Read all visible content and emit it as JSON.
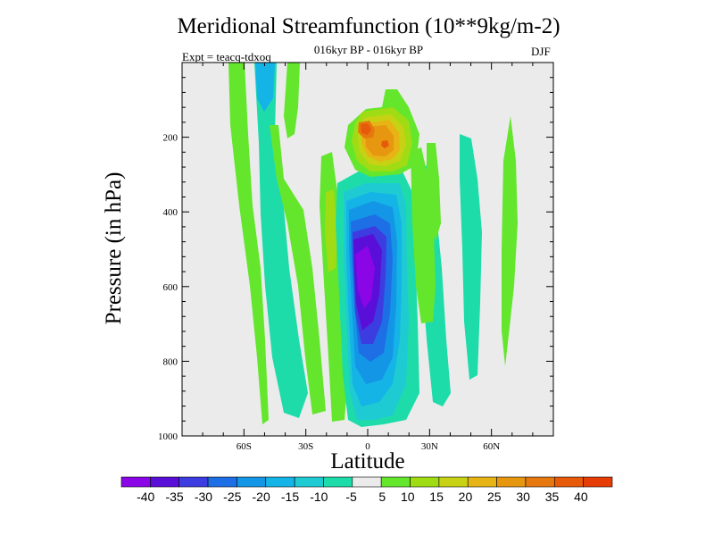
{
  "chart_data": {
    "type": "contour",
    "title": "Meridional Streamfunction (10**9kg/m-2)",
    "subtitle": "016kyr BP - 016kyr BP",
    "experiment_label": "Expt = teacq-tdxoq",
    "season": "DJF",
    "xlabel": "Latitude",
    "ylabel": "Pressure (in hPa)",
    "xlim": [
      -90,
      90
    ],
    "ylim": [
      1000,
      0
    ],
    "x_ticks": [
      {
        "value": -60,
        "label": "60S"
      },
      {
        "value": -30,
        "label": "30S"
      },
      {
        "value": 0,
        "label": "0"
      },
      {
        "value": 30,
        "label": "30N"
      },
      {
        "value": 60,
        "label": "60N"
      }
    ],
    "y_ticks": [
      {
        "value": 200,
        "label": "200"
      },
      {
        "value": 400,
        "label": "400"
      },
      {
        "value": 600,
        "label": "600"
      },
      {
        "value": 800,
        "label": "800"
      },
      {
        "value": 1000,
        "label": "1000"
      }
    ],
    "colorbar": {
      "labels": [
        "-40",
        "-35",
        "-30",
        "-25",
        "-20",
        "-15",
        "-10",
        "-5",
        "5",
        "10",
        "15",
        "20",
        "25",
        "30",
        "35",
        "40"
      ],
      "colors": [
        "#8a06e6",
        "#5a0fd8",
        "#3c3ce0",
        "#1e6ee6",
        "#1496e6",
        "#14b4e6",
        "#1ecbd2",
        "#1edcaa",
        "#ebebeb",
        "#64e62d",
        "#a0dc14",
        "#c8d214",
        "#e6b414",
        "#e6960f",
        "#e6780f",
        "#e65a0a",
        "#e63c05"
      ]
    },
    "features": [
      {
        "name": "southern-hemisphere cell",
        "center_lat": 0,
        "center_p": 550,
        "min_value": -40
      },
      {
        "name": "upper-level northern cell",
        "center_lat": 8,
        "center_p": 200,
        "max_value": 35
      }
    ]
  }
}
